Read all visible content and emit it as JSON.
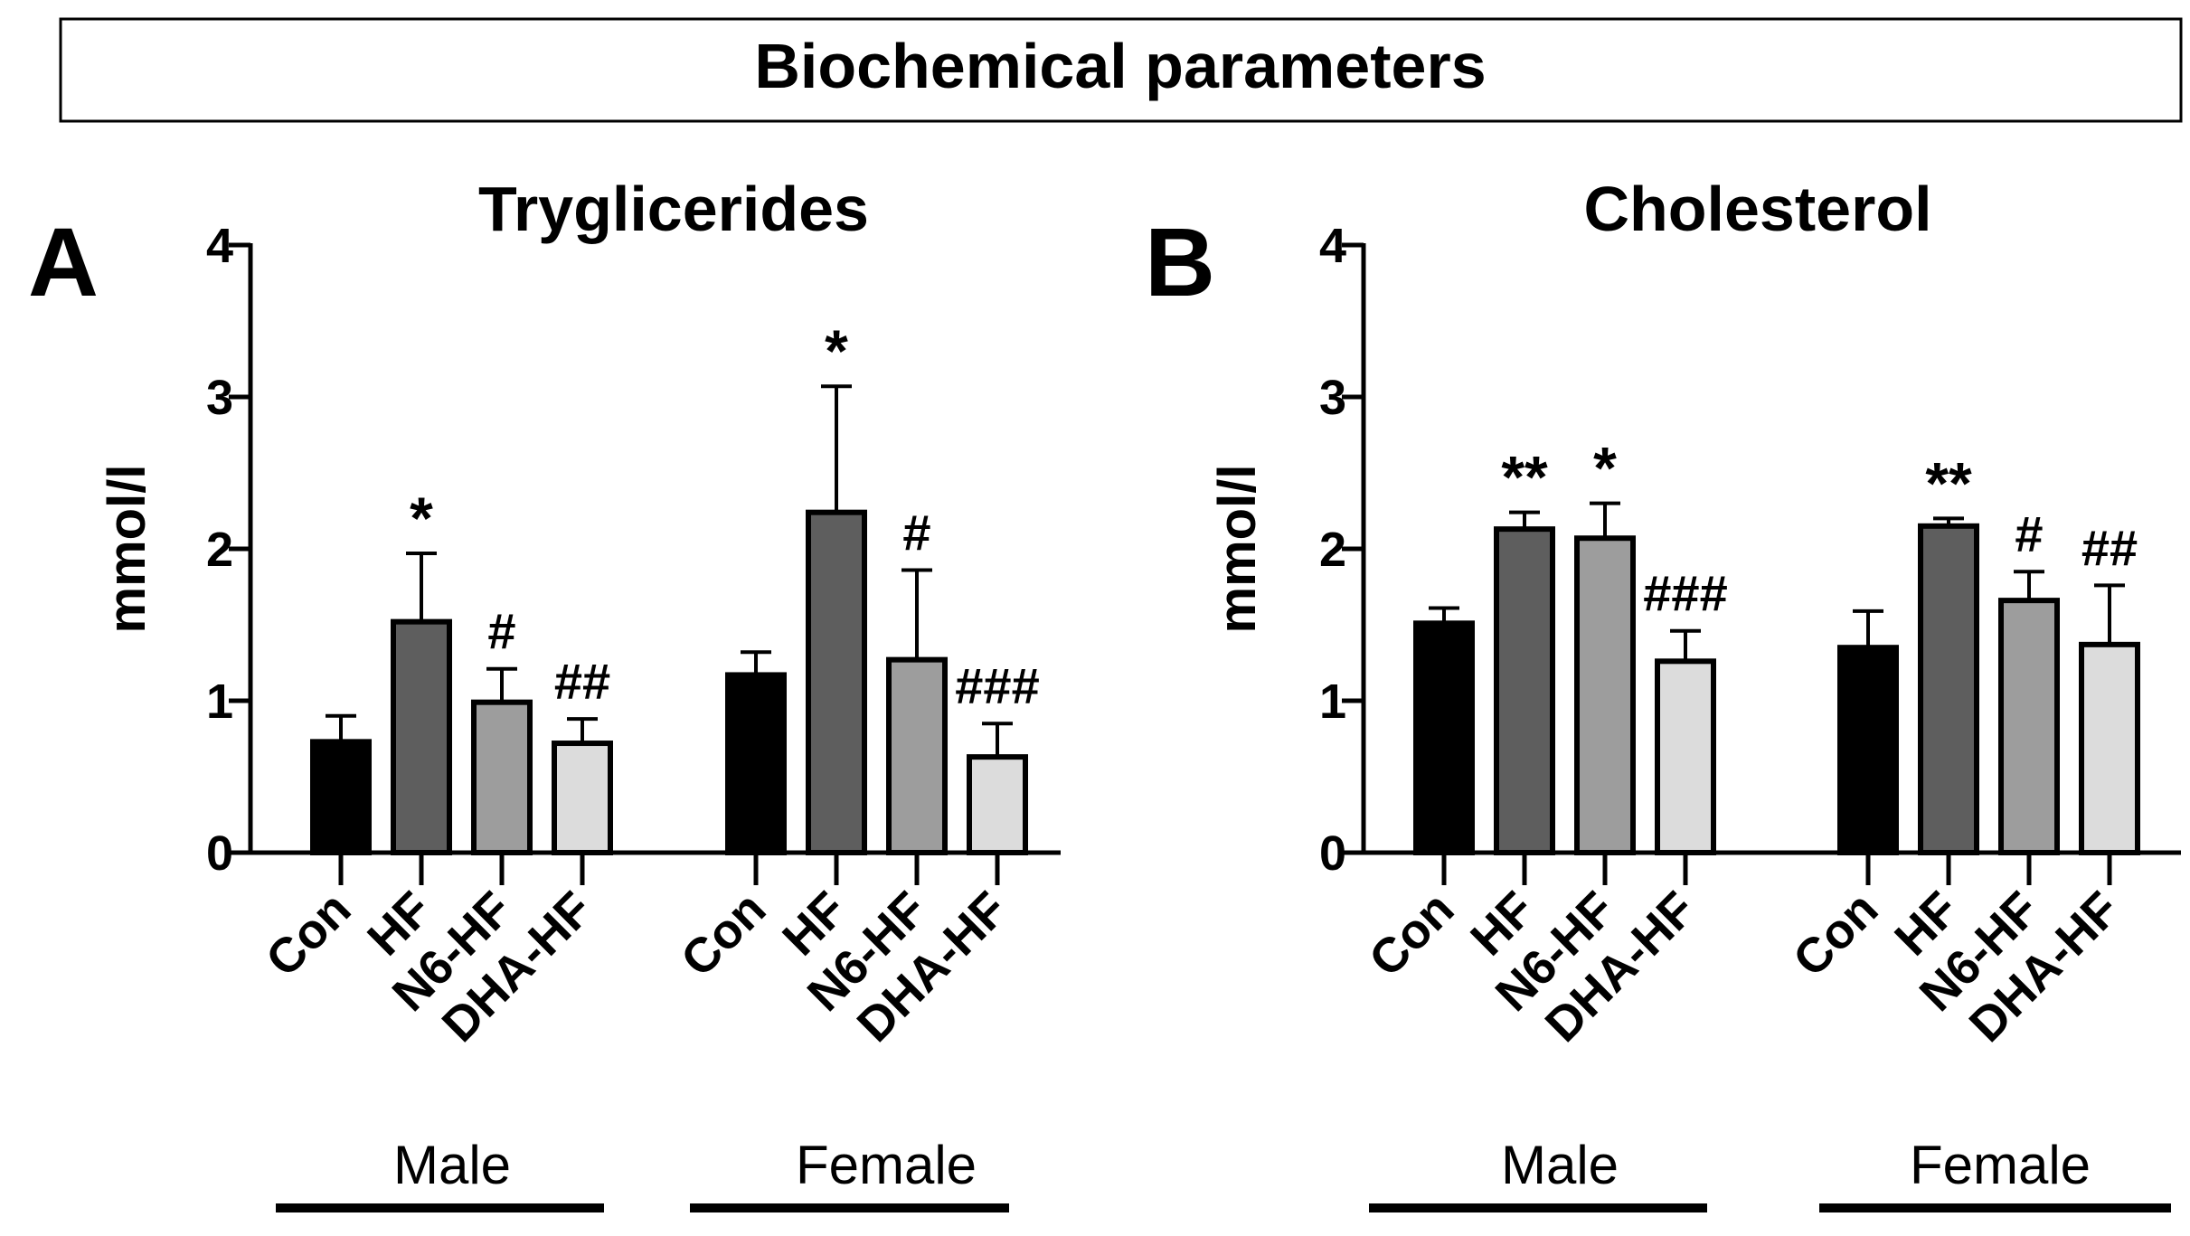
{
  "figure_title": "Biochemical parameters",
  "colors": {
    "Con": "#000000",
    "HF": "#5e5e5e",
    "N6-HF": "#9d9d9d",
    "DHA-HF": "#dcdcdc"
  },
  "chart_data": [
    {
      "type": "bar",
      "panel_label": "A",
      "title": "Tryglicerides",
      "ylabel": "mmol/l",
      "xlabel": "",
      "ylim": [
        0,
        4
      ],
      "yticks": [
        0,
        1,
        2,
        3,
        4
      ],
      "groups": [
        {
          "name": "Male",
          "categories": [
            "Con",
            "HF",
            "N6-HF",
            "DHA-HF"
          ],
          "values": [
            0.73,
            1.52,
            0.99,
            0.72
          ],
          "errors": [
            0.17,
            0.45,
            0.22,
            0.16
          ],
          "annotations": [
            "",
            "*",
            "#",
            "##"
          ]
        },
        {
          "name": "Female",
          "categories": [
            "Con",
            "HF",
            "N6-HF",
            "DHA-HF"
          ],
          "values": [
            1.17,
            2.24,
            1.27,
            0.63
          ],
          "errors": [
            0.15,
            0.83,
            0.59,
            0.22
          ],
          "annotations": [
            "",
            "*",
            "#",
            "###"
          ]
        }
      ]
    },
    {
      "type": "bar",
      "panel_label": "B",
      "title": "Cholesterol",
      "ylabel": "mmol/l",
      "xlabel": "",
      "ylim": [
        0,
        4
      ],
      "yticks": [
        0,
        1,
        2,
        3,
        4
      ],
      "groups": [
        {
          "name": "Male",
          "categories": [
            "Con",
            "HF",
            "N6-HF",
            "DHA-HF"
          ],
          "values": [
            1.51,
            2.13,
            2.07,
            1.26
          ],
          "errors": [
            0.1,
            0.11,
            0.23,
            0.2
          ],
          "annotations": [
            "",
            "**",
            "*",
            "###"
          ]
        },
        {
          "name": "Female",
          "categories": [
            "Con",
            "HF",
            "N6-HF",
            "DHA-HF"
          ],
          "values": [
            1.35,
            2.15,
            1.66,
            1.37
          ],
          "errors": [
            0.24,
            0.05,
            0.19,
            0.39
          ],
          "annotations": [
            "",
            "**",
            "#",
            "##"
          ]
        }
      ]
    }
  ]
}
